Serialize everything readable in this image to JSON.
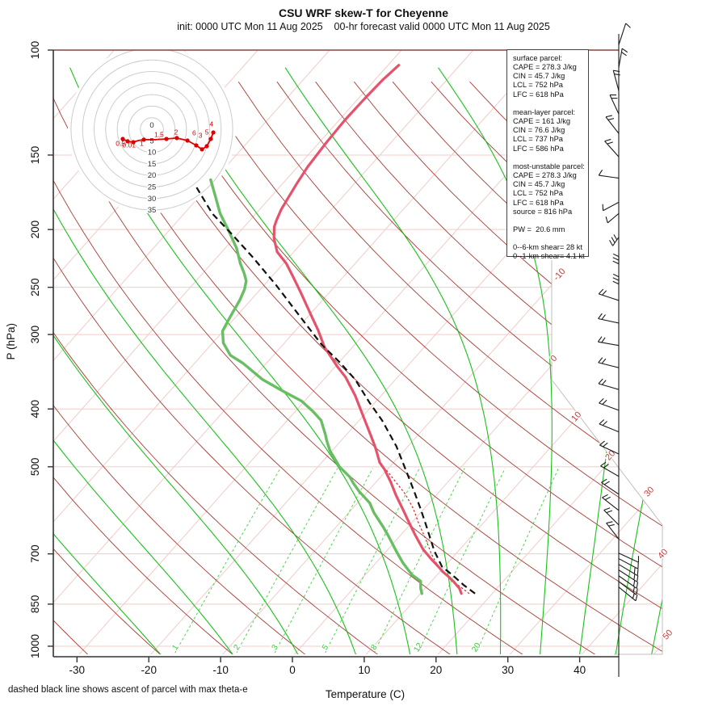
{
  "header": {
    "title": "CSU WRF skew-T for Cheyenne",
    "subtitle": "init: 0000 UTC Mon 11 Aug 2025    00-hr forecast valid 0000 UTC Mon 11 Aug 2025"
  },
  "footer": {
    "note": "dashed black line shows ascent of parcel with max theta-e"
  },
  "axes": {
    "x_label": "Temperature (C)",
    "y_label": "P (hPa)",
    "x_ticks": [
      -30,
      -20,
      -10,
      0,
      10,
      20,
      30,
      40
    ],
    "y_ticks": [
      100,
      150,
      200,
      250,
      300,
      400,
      500,
      700,
      850,
      1000
    ]
  },
  "stats_box": {
    "lines": [
      "surface parcel:",
      "CAPE = 278.3 J/kg",
      "CIN = 45.7 J/kg",
      "LCL = 752 hPa",
      "LFC = 618 hPa",
      "",
      "mean-layer parcel:",
      "CAPE = 161 J/kg",
      "CIN = 76.6 J/kg",
      "LCL = 737 hPa",
      "LFC = 586 hPa",
      "",
      "most-unstable parcel:",
      "CAPE = 278.3 J/kg",
      "CIN = 45.7 J/kg",
      "LCL = 752 hPa",
      "LFC = 618 hPa",
      "source = 816 hPa",
      "",
      "PW =  20.6 mm",
      "",
      "0--6-km shear= 28 kt",
      "0--1-km shear= 4.1 kt"
    ]
  },
  "hodograph": {
    "ring_labels": [
      "0",
      "5",
      "10",
      "15",
      "20",
      "25",
      "30",
      "35"
    ],
    "ring_interval": 5,
    "trace_uv": [
      [
        -12.6,
        -4.2
      ],
      [
        -10.5,
        -5.2
      ],
      [
        -8,
        -5.6
      ],
      [
        -5.9,
        -4.9
      ],
      [
        -3.5,
        -4.5
      ],
      [
        1.4,
        -4.5
      ],
      [
        6.3,
        -4.2
      ],
      [
        10.8,
        -3.8
      ],
      [
        15.4,
        -4.9
      ],
      [
        19.2,
        -7
      ],
      [
        21.7,
        -8.7
      ],
      [
        23.8,
        -7.3
      ],
      [
        25.5,
        -4.2
      ],
      [
        26.6,
        -1.4
      ]
    ],
    "dot_indices": [
      0,
      1,
      2,
      4,
      6,
      7,
      8,
      9,
      10,
      11,
      12,
      13
    ],
    "height_labels_km": [
      {
        "t": "0.5",
        "u": -13.6,
        "v": -7.2
      },
      {
        "t": "0.01",
        "u": -9.9,
        "v": -7.9
      },
      {
        "t": "1",
        "u": -4.4,
        "v": -7.2
      },
      {
        "t": "1.5",
        "u": 3.1,
        "v": -3.4
      },
      {
        "t": "2",
        "u": 10.5,
        "v": -2.2
      },
      {
        "t": "6",
        "u": 18.3,
        "v": -2.7
      },
      {
        "t": "3",
        "u": 21.0,
        "v": -3.7
      },
      {
        "t": "5",
        "u": 23.8,
        "v": -2.2
      },
      {
        "t": "4",
        "u": 25.8,
        "v": 1.3
      }
    ]
  },
  "wind_barbs": [
    {
      "p": 98,
      "ang": 108,
      "ticks": 1,
      "len": 28
    },
    {
      "p": 107,
      "ang": 100,
      "ticks": 2,
      "len": 24
    },
    {
      "p": 117,
      "ang": 75,
      "ticks": 2,
      "len": 26
    },
    {
      "p": 128,
      "ang": 65,
      "ticks": 2,
      "len": 26
    },
    {
      "p": 138,
      "ang": 52,
      "ticks": 2,
      "len": 26
    },
    {
      "p": 151,
      "ang": 48,
      "ticks": 2,
      "len": 26
    },
    {
      "p": 164,
      "ang": 8,
      "ticks": 1,
      "len": 25
    },
    {
      "p": 180,
      "ang": -28,
      "ticks": 1,
      "len": 22
    },
    {
      "p": 188,
      "ang": -40,
      "ticks": 1,
      "len": 18
    },
    {
      "p": 206,
      "ang": -55,
      "ticks": 3,
      "len": 13
    },
    {
      "p": 222,
      "ang": -90,
      "ticks": 3,
      "len": 9
    },
    {
      "p": 240,
      "ang": -90,
      "ticks": 3,
      "len": 9
    },
    {
      "p": 263,
      "ang": 18,
      "ticks": 2,
      "len": 26
    },
    {
      "p": 287,
      "ang": 12,
      "ticks": 2,
      "len": 26
    },
    {
      "p": 313,
      "ang": 10,
      "ticks": 2,
      "len": 26
    },
    {
      "p": 341,
      "ang": 14,
      "ticks": 2,
      "len": 26
    },
    {
      "p": 371,
      "ang": 16,
      "ticks": 2,
      "len": 26
    },
    {
      "p": 402,
      "ang": 20,
      "ticks": 2,
      "len": 26
    },
    {
      "p": 437,
      "ang": 22,
      "ticks": 2,
      "len": 26
    },
    {
      "p": 476,
      "ang": 25,
      "ticks": 2,
      "len": 26
    },
    {
      "p": 519,
      "ang": 30,
      "ticks": 2,
      "len": 26
    },
    {
      "p": 556,
      "ang": 34,
      "ticks": 2,
      "len": 26
    },
    {
      "p": 592,
      "ang": 38,
      "ticks": 2,
      "len": 26
    },
    {
      "p": 626,
      "ang": 45,
      "ticks": 2,
      "len": 26
    },
    {
      "p": 661,
      "ang": 52,
      "ticks": 2,
      "len": 25
    },
    {
      "p": 698,
      "ang": 205,
      "ticks": 1,
      "len": 27
    },
    {
      "p": 713,
      "ang": 208,
      "ticks": 1,
      "len": 27
    },
    {
      "p": 729,
      "ang": 211,
      "ticks": 2,
      "len": 27
    },
    {
      "p": 745,
      "ang": 213,
      "ticks": 2,
      "len": 27
    },
    {
      "p": 762,
      "ang": 215,
      "ticks": 2,
      "len": 27
    },
    {
      "p": 779,
      "ang": 217,
      "ticks": 2,
      "len": 27
    },
    {
      "p": 796,
      "ang": 219,
      "ticks": 2,
      "len": 27
    }
  ],
  "chart_data": {
    "type": "skew-t log-p sounding",
    "title": "CSU WRF skew-T for Cheyenne",
    "pressure_range_hPa": [
      100,
      1043
    ],
    "temperature_axis_C": [
      -30,
      40
    ],
    "grid": "skewed isotherms, dry adiabats, moist adiabats, mixing-ratio lines",
    "mixing_ratio_labels_g_kg": [
      1,
      2,
      3,
      5,
      8,
      12,
      20
    ],
    "isotherm_labels": [
      {
        "t": "-10",
        "x": 695,
        "y": 342
      },
      {
        "t": "0",
        "x": 688,
        "y": 446
      },
      {
        "t": "10",
        "x": 716,
        "y": 518
      },
      {
        "t": "20",
        "x": 758,
        "y": 566
      },
      {
        "t": "30",
        "x": 806,
        "y": 611
      },
      {
        "t": "40",
        "x": 823,
        "y": 688
      },
      {
        "t": "50",
        "x": 829,
        "y": 788
      }
    ],
    "temperature_profile_p_T": [
      [
        816,
        15.7
      ],
      [
        800,
        14.8
      ],
      [
        780,
        13.2
      ],
      [
        762,
        11.6
      ],
      [
        750,
        10.4
      ],
      [
        738,
        9.4
      ],
      [
        715,
        7.3
      ],
      [
        688,
        4.9
      ],
      [
        652,
        2.1
      ],
      [
        620,
        -0.4
      ],
      [
        588,
        -3.0
      ],
      [
        558,
        -5.6
      ],
      [
        530,
        -8.0
      ],
      [
        505,
        -10.4
      ],
      [
        492,
        -11.9
      ],
      [
        465,
        -14.3
      ],
      [
        445,
        -16.3
      ],
      [
        418,
        -19.2
      ],
      [
        380,
        -23.6
      ],
      [
        354,
        -27.2
      ],
      [
        339,
        -29.8
      ],
      [
        315,
        -33.9
      ],
      [
        295,
        -36.9
      ],
      [
        278,
        -39.8
      ],
      [
        256,
        -43.8
      ],
      [
        240,
        -47.0
      ],
      [
        228,
        -49.6
      ],
      [
        218,
        -52.3
      ],
      [
        207,
        -54.4
      ],
      [
        198,
        -55.8
      ],
      [
        193,
        -56.3
      ],
      [
        185,
        -57.0
      ],
      [
        178,
        -57.4
      ],
      [
        168,
        -58.0
      ],
      [
        157,
        -58.6
      ],
      [
        143,
        -59.0
      ],
      [
        131,
        -59.2
      ],
      [
        120,
        -59.1
      ],
      [
        112,
        -58.9
      ],
      [
        106,
        -58.5
      ]
    ],
    "dewpoint_profile_p_T": [
      [
        816,
        10.2
      ],
      [
        800,
        9.4
      ],
      [
        778,
        8.5
      ],
      [
        759,
        6.5
      ],
      [
        724,
        3.7
      ],
      [
        693,
        1.4
      ],
      [
        652,
        -1.7
      ],
      [
        629,
        -3.6
      ],
      [
        597,
        -6.5
      ],
      [
        575,
        -8.3
      ],
      [
        550,
        -11.2
      ],
      [
        533,
        -13.0
      ],
      [
        520,
        -14.3
      ],
      [
        500,
        -17.0
      ],
      [
        470,
        -20.3
      ],
      [
        452,
        -22.0
      ],
      [
        442,
        -22.9
      ],
      [
        418,
        -25.3
      ],
      [
        404,
        -27.5
      ],
      [
        388,
        -30.4
      ],
      [
        372,
        -34.6
      ],
      [
        357,
        -38.5
      ],
      [
        335,
        -43.3
      ],
      [
        325,
        -46.0
      ],
      [
        310,
        -48.5
      ],
      [
        296,
        -50.1
      ],
      [
        280,
        -50.8
      ],
      [
        263,
        -51.5
      ],
      [
        252,
        -52.2
      ],
      [
        244,
        -53.0
      ],
      [
        237,
        -54.2
      ],
      [
        228,
        -56.0
      ],
      [
        215,
        -58.4
      ],
      [
        200,
        -61.9
      ],
      [
        188,
        -65.0
      ],
      [
        175,
        -68.0
      ],
      [
        165,
        -70.5
      ]
    ],
    "parcel_max_thetae_p_T": [
      [
        816,
        17.6
      ],
      [
        790,
        15.0
      ],
      [
        759,
        12.1
      ],
      [
        736,
        9.7
      ],
      [
        693,
        6.7
      ],
      [
        659,
        4.5
      ],
      [
        625,
        2.2
      ],
      [
        588,
        -0.5
      ],
      [
        548,
        -3.7
      ],
      [
        508,
        -7.2
      ],
      [
        462,
        -11.6
      ],
      [
        418,
        -16.8
      ],
      [
        390,
        -20.8
      ],
      [
        357,
        -25.6
      ],
      [
        333,
        -30.1
      ],
      [
        312,
        -34.6
      ],
      [
        278,
        -41.5
      ],
      [
        248,
        -48.3
      ],
      [
        222,
        -55.2
      ],
      [
        203,
        -61.0
      ],
      [
        188,
        -66.1
      ],
      [
        170,
        -71.5
      ]
    ],
    "surface_parcel_p_T": [
      [
        816,
        16.8
      ],
      [
        790,
        14.2
      ],
      [
        760,
        11.3
      ],
      [
        736,
        9.2
      ],
      [
        700,
        6.6
      ],
      [
        660,
        3.9
      ],
      [
        620,
        0.9
      ],
      [
        588,
        -1.5
      ],
      [
        556,
        -4.4
      ],
      [
        530,
        -7.3
      ],
      [
        510,
        -9.6
      ],
      [
        498,
        -11.2
      ]
    ]
  },
  "colors": {
    "temperature": "#E4536B",
    "dewpoint": "#69BD63",
    "parcel_max_thetae": "#111111",
    "surface_parcel": "#E02020",
    "dry_adiabat": "#A93B35",
    "isotherm": "#F0CCC8",
    "moist_adiabat": "#00BB00",
    "mixing_ratio": "#2ECC2E",
    "label_red": "#BE3F3C",
    "hodograph_trace": "#E00000",
    "axis": "#333333"
  }
}
